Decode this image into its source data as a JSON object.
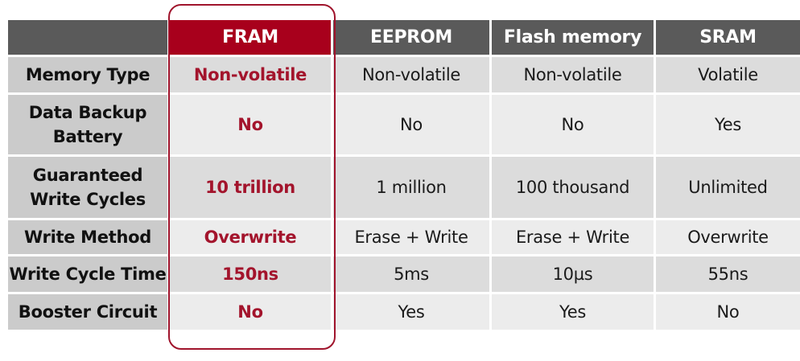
{
  "accent_color": "#a8001c",
  "header_color": "#5a5a5a",
  "columns": [
    "",
    "FRAM",
    "EEPROM",
    "Flash memory",
    "SRAM"
  ],
  "highlighted_column": "FRAM",
  "rows": [
    {
      "label": "Memory Type",
      "values": [
        "Non-volatile",
        "Non-volatile",
        "Non-volatile",
        "Volatile"
      ]
    },
    {
      "label": "Data Backup\nBattery",
      "values": [
        "No",
        "No",
        "No",
        "Yes"
      ]
    },
    {
      "label": "Guaranteed\nWrite Cycles",
      "values": [
        "10 trillion",
        "1 million",
        "100 thousand",
        "Unlimited"
      ]
    },
    {
      "label": "Write Method",
      "values": [
        "Overwrite",
        "Erase + Write",
        "Erase + Write",
        "Overwrite"
      ]
    },
    {
      "label": "Write Cycle Time",
      "values": [
        "150ns",
        "5ms",
        "10µs",
        "55ns"
      ]
    },
    {
      "label": "Booster Circuit",
      "values": [
        "No",
        "Yes",
        "Yes",
        "No"
      ]
    }
  ]
}
